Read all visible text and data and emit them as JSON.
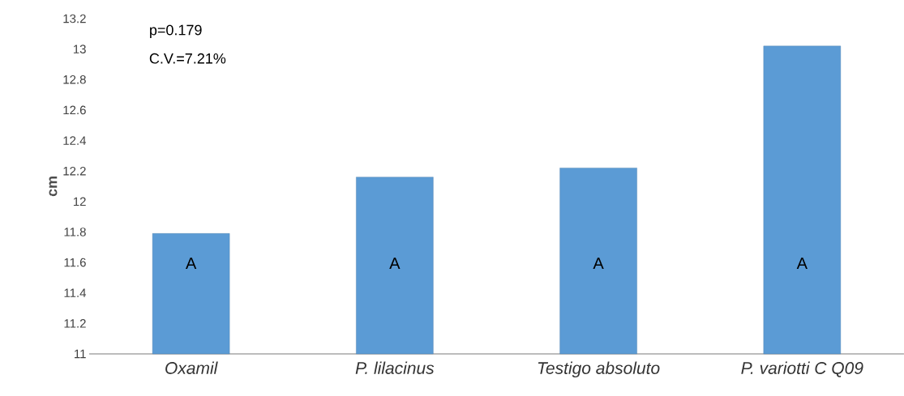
{
  "chart_data": {
    "type": "bar",
    "ylabel": "cm",
    "categories": [
      "Oxamil",
      "P. lilacinus",
      "Testigo absoluto",
      "P. variotti C Q09"
    ],
    "values": [
      11.79,
      12.16,
      12.22,
      13.02
    ],
    "color": "#5b9bd5",
    "ylim": [
      11,
      13.2
    ],
    "yticks": [
      11,
      11.2,
      11.4,
      11.6,
      11.8,
      12,
      12.2,
      12.4,
      12.6,
      12.8,
      13,
      13.2
    ],
    "annotations": [
      "p=0.179",
      "C.V.=7.21%",
      "A",
      "A",
      "A",
      "A"
    ]
  }
}
